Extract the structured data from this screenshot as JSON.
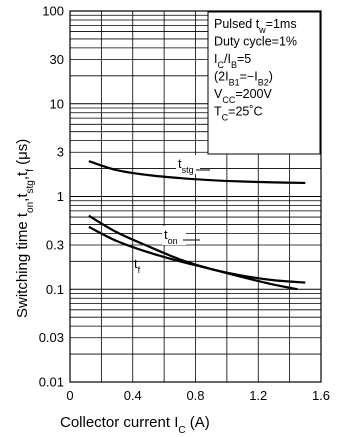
{
  "chart_data": {
    "type": "line",
    "xlabel": {
      "text": "Collector current",
      "symbol": "I",
      "sub": "C",
      "unit": "(A)"
    },
    "ylabel": {
      "prefix": "Switching time",
      "parts": [
        {
          "t": "t",
          "s": "on"
        },
        {
          "t": ",t",
          "s": "stg"
        },
        {
          "t": ",t",
          "s": "f"
        }
      ],
      "unit": "(μs)"
    },
    "xlim": [
      0,
      1.6
    ],
    "ylim": [
      0.01,
      100
    ],
    "yscale": "log",
    "grid": true,
    "xticks": [
      "0",
      "0.4",
      "0.8",
      "1.2",
      "1.6"
    ],
    "xtick_values": [
      0,
      0.4,
      0.8,
      1.2,
      1.6
    ],
    "yticks": [
      "100",
      "30",
      "10",
      "3",
      "1",
      "0.3",
      "0.1",
      "0.03",
      "0.01"
    ],
    "ytick_values": [
      100,
      30,
      10,
      3,
      1,
      0.3,
      0.1,
      0.03,
      0.01
    ],
    "conditions": [
      [
        {
          "t": "Pulsed t"
        },
        {
          "t": "w",
          "sub": true
        },
        {
          "t": "=1ms"
        }
      ],
      [
        {
          "t": "Duty cycle=1%"
        }
      ],
      [
        {
          "t": "I"
        },
        {
          "t": "C",
          "sub": true
        },
        {
          "t": "/I"
        },
        {
          "t": "B",
          "sub": true
        },
        {
          "t": "=5"
        }
      ],
      [
        {
          "t": "(2I"
        },
        {
          "t": "B1",
          "sub": true
        },
        {
          "t": "=−I"
        },
        {
          "t": "B2",
          "sub": true
        },
        {
          "t": ")"
        }
      ],
      [
        {
          "t": "V"
        },
        {
          "t": "CC",
          "sub": true
        },
        {
          "t": "=200V"
        }
      ],
      [
        {
          "t": "T"
        },
        {
          "t": "C",
          "sub": true
        },
        {
          "t": "=25˚C"
        }
      ]
    ],
    "series": [
      {
        "name": "t_stg",
        "label_main": "t",
        "label_sub": "stg",
        "x": [
          0.12,
          0.3,
          0.5,
          0.7,
          0.9,
          1.1,
          1.3,
          1.5
        ],
        "y": [
          2.4,
          1.92,
          1.7,
          1.58,
          1.5,
          1.45,
          1.42,
          1.4
        ]
      },
      {
        "name": "t_on",
        "label_main": "t",
        "label_sub": "on",
        "x": [
          0.12,
          0.3,
          0.5,
          0.7,
          0.9,
          1.1,
          1.3,
          1.5
        ],
        "y": [
          0.62,
          0.41,
          0.29,
          0.21,
          0.165,
          0.14,
          0.125,
          0.118
        ]
      },
      {
        "name": "t_f",
        "label_main": "t",
        "label_sub": "f",
        "x": [
          0.12,
          0.3,
          0.5,
          0.7,
          0.9,
          1.1,
          1.3,
          1.45
        ],
        "y": [
          0.47,
          0.33,
          0.25,
          0.2,
          0.165,
          0.135,
          0.112,
          0.1
        ]
      }
    ]
  }
}
